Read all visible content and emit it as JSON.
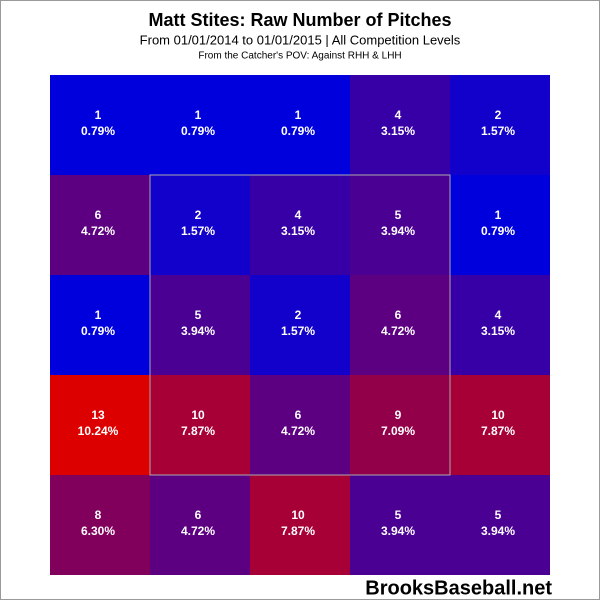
{
  "chart_data": {
    "type": "heatmap",
    "title": "Matt Stites: Raw Number of Pitches",
    "subtitle": "From 01/01/2014 to 01/01/2015 | All Competition Levels",
    "note": "From the Catcher's POV:  Against RHH & LHH",
    "watermark": "BrooksBaseball.net",
    "color_scale": [
      "#0000dd",
      "#dd0000"
    ],
    "rows": [
      {
        "counts": [
          1,
          1,
          1,
          4,
          2
        ],
        "percents": [
          0.79,
          0.79,
          0.79,
          3.15,
          1.57
        ],
        "percent_labels": [
          "0.79%",
          "0.79%",
          "0.79%",
          "3.15%",
          "1.57%"
        ]
      },
      {
        "counts": [
          6,
          2,
          4,
          5,
          1
        ],
        "percents": [
          4.72,
          1.57,
          3.15,
          3.94,
          0.79
        ],
        "percent_labels": [
          "4.72%",
          "1.57%",
          "3.15%",
          "3.94%",
          "0.79%"
        ]
      },
      {
        "counts": [
          1,
          5,
          2,
          6,
          4
        ],
        "percents": [
          0.79,
          3.94,
          1.57,
          4.72,
          3.15
        ],
        "percent_labels": [
          "0.79%",
          "3.94%",
          "1.57%",
          "4.72%",
          "3.15%"
        ]
      },
      {
        "counts": [
          13,
          10,
          6,
          9,
          10
        ],
        "percents": [
          10.24,
          7.87,
          4.72,
          7.09,
          7.87
        ],
        "percent_labels": [
          "10.24%",
          "7.87%",
          "4.72%",
          "7.09%",
          "7.87%"
        ]
      },
      {
        "counts": [
          8,
          6,
          10,
          5,
          5
        ],
        "percents": [
          6.3,
          4.72,
          7.87,
          3.94,
          3.94
        ],
        "percent_labels": [
          "6.30%",
          "4.72%",
          "7.87%",
          "3.94%",
          "3.94%"
        ]
      }
    ]
  }
}
